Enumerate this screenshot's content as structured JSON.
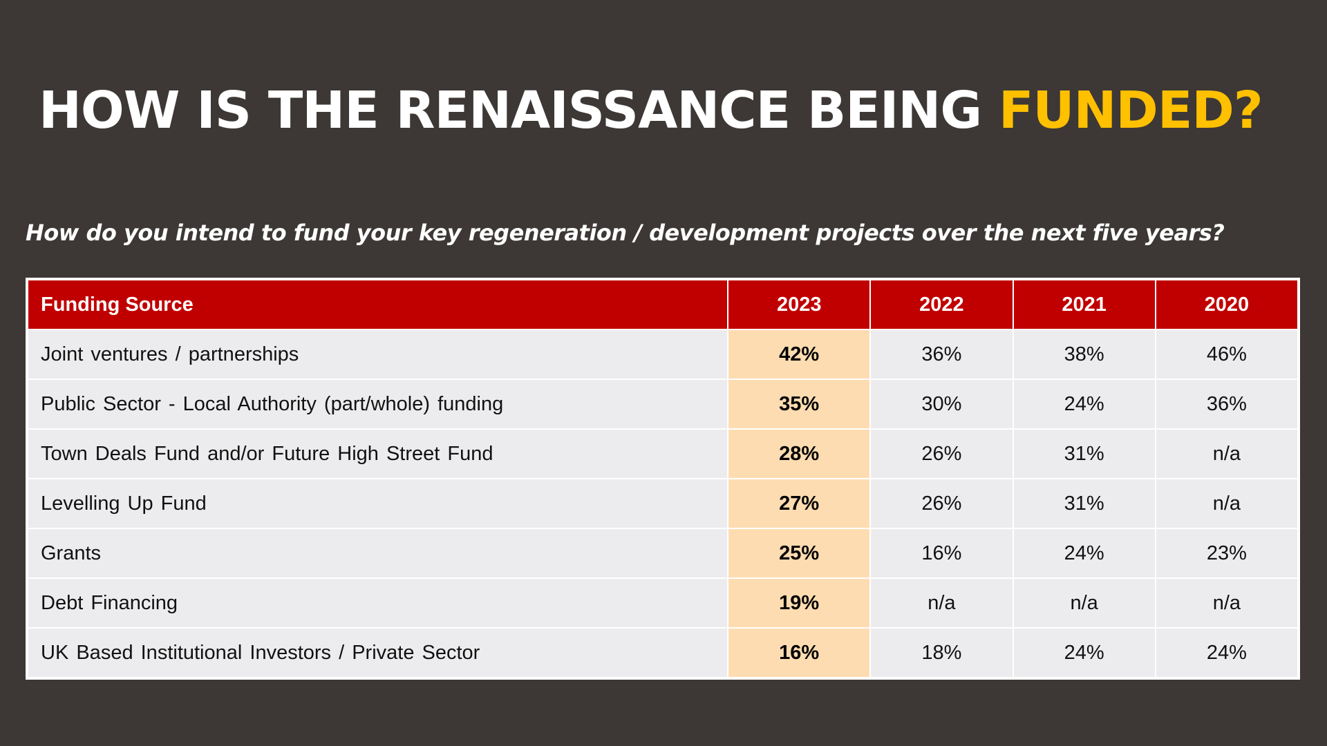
{
  "title": {
    "main": "HOW IS THE RENAISSANCE BEING ",
    "accent": "FUNDED?"
  },
  "subtitle": "How do you intend to fund your key regeneration / development projects over the next five years?",
  "colors": {
    "background": "#3d3835",
    "accent": "#ffc000",
    "header_red": "#c00000",
    "highlight": "#fedcb1",
    "row_bg": "#ececee"
  },
  "table": {
    "headers": [
      "Funding Source",
      "2023",
      "2022",
      "2021",
      "2020"
    ],
    "rows": [
      [
        "Joint ventures / partnerships",
        "42%",
        "36%",
        "38%",
        "46%"
      ],
      [
        "Public Sector - Local Authority (part/whole) funding",
        "35%",
        "30%",
        "24%",
        "36%"
      ],
      [
        "Town Deals Fund and/or Future High Street Fund",
        "28%",
        "26%",
        "31%",
        "n/a"
      ],
      [
        "Levelling Up Fund",
        "27%",
        "26%",
        "31%",
        "n/a"
      ],
      [
        "Grants",
        "25%",
        "16%",
        "24%",
        "23%"
      ],
      [
        "Debt Financing",
        "19%",
        "n/a",
        "n/a",
        "n/a"
      ],
      [
        "UK Based Institutional Investors / Private Sector",
        "16%",
        "18%",
        "24%",
        "24%"
      ]
    ]
  }
}
